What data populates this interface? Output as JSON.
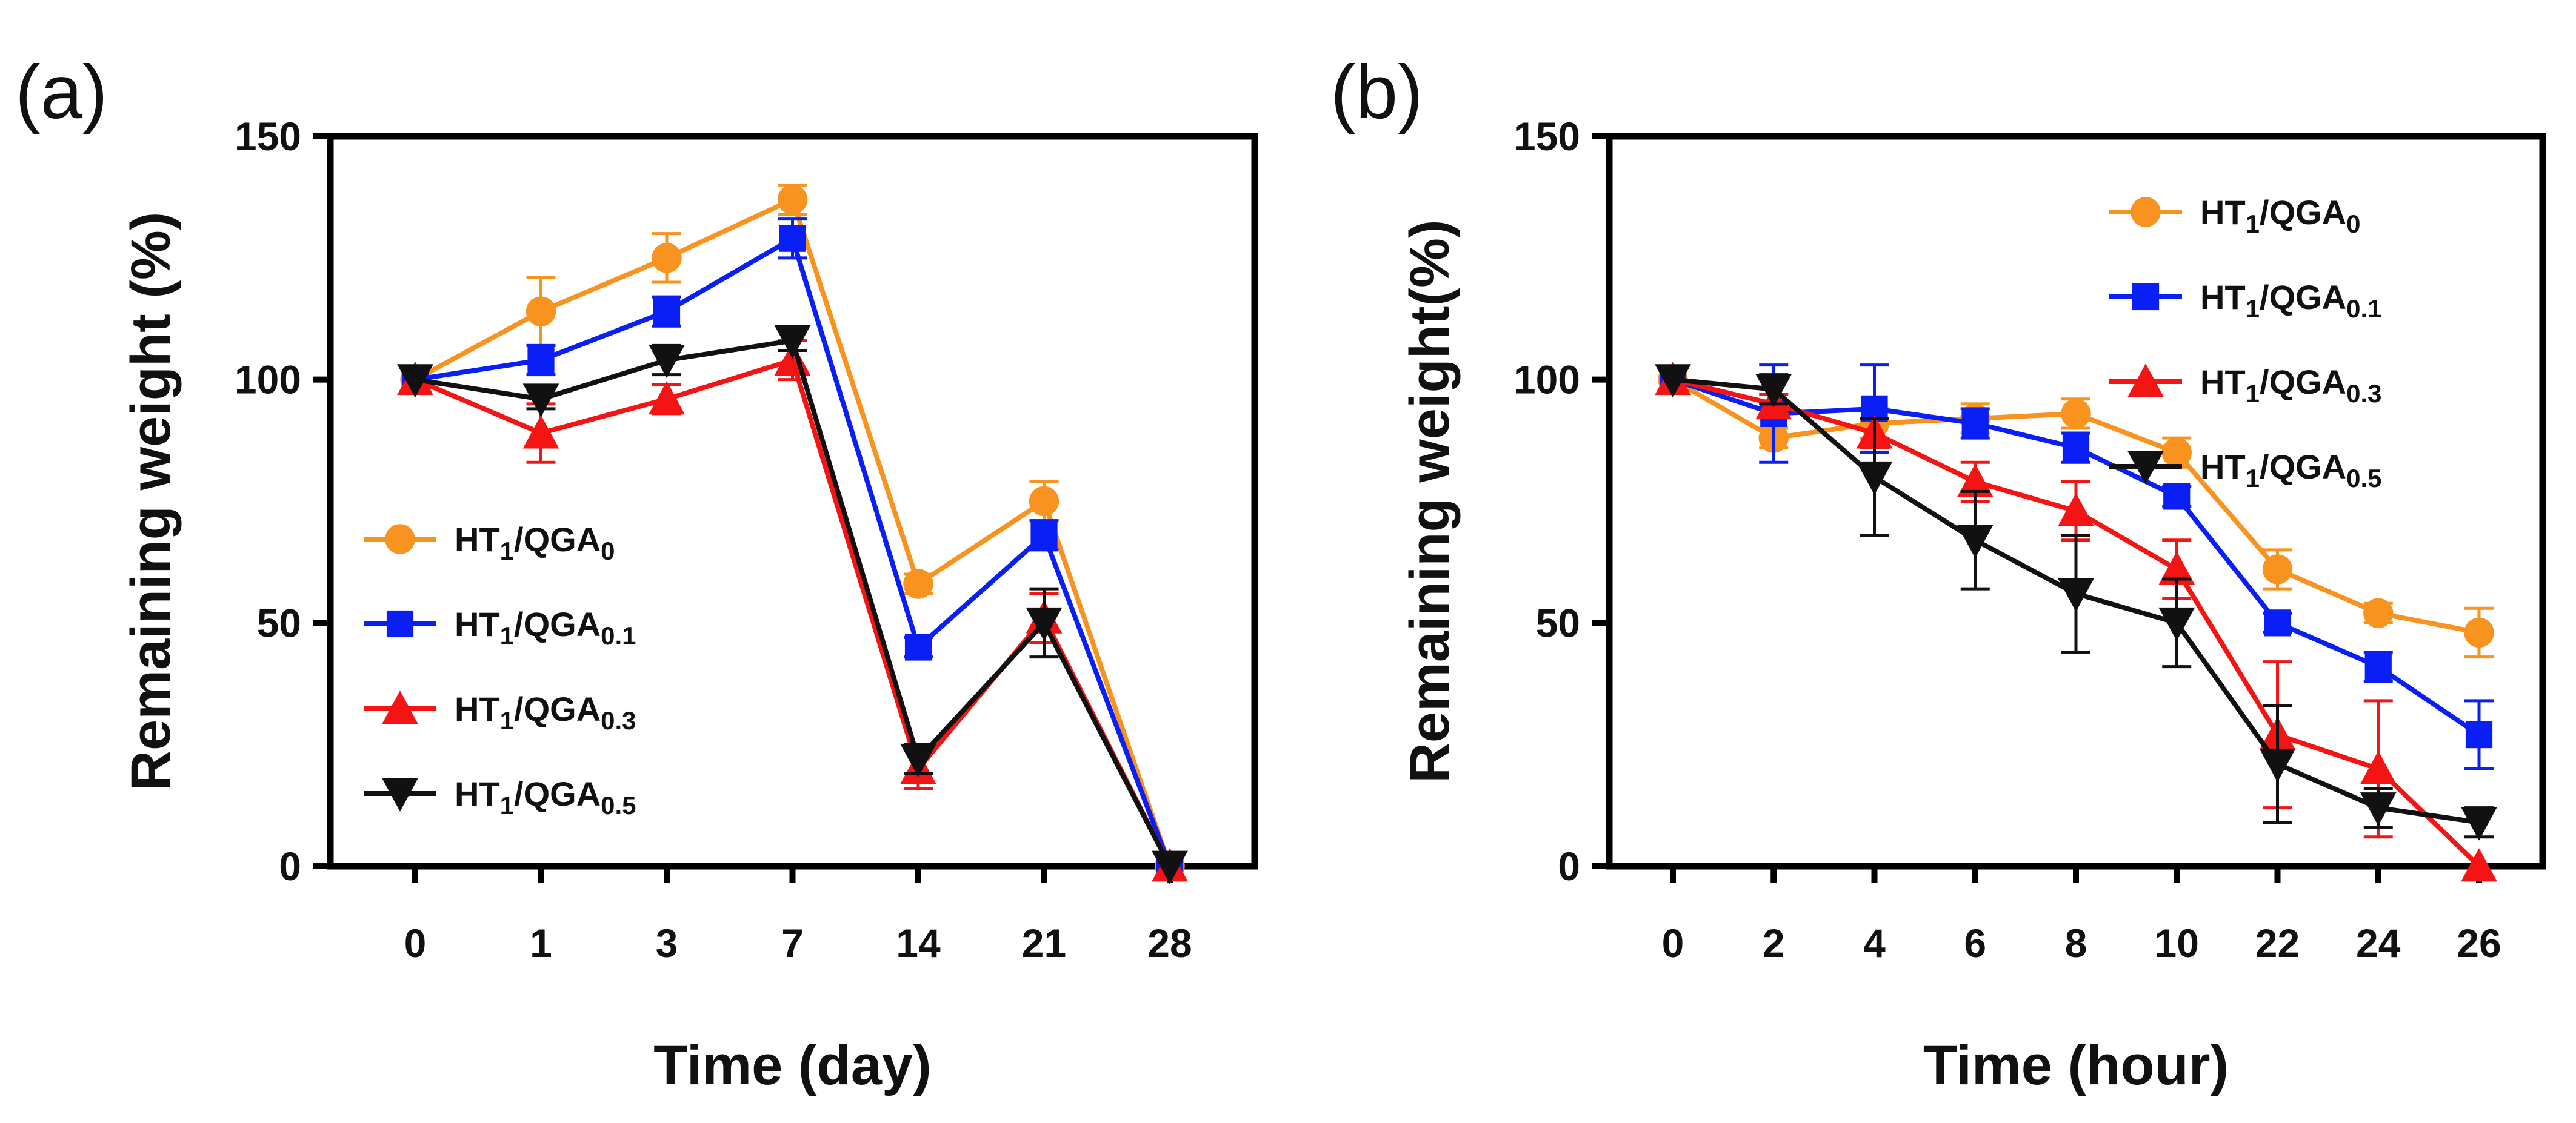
{
  "chart_data": [
    {
      "panel_label": "(a)",
      "type": "line",
      "title": "",
      "xlabel": "Time (day)",
      "ylabel": "Remaining weight (%)",
      "categories": [
        "0",
        "1",
        "3",
        "7",
        "14",
        "21",
        "28"
      ],
      "ylim": [
        0,
        150
      ],
      "yticks": [
        "0",
        "50",
        "100",
        "150"
      ],
      "grid": false,
      "legend_position": "lower-left",
      "series": [
        {
          "name": "HT1/QGA0",
          "label_main": "HT",
          "label_sub1": "1",
          "label_mid": "/QGA",
          "label_sub2": "0",
          "color": "#F7931E",
          "marker": "circle",
          "values": [
            100,
            114,
            125,
            137,
            58,
            75,
            0
          ],
          "errors": [
            0,
            7,
            5,
            3,
            2,
            4,
            0
          ]
        },
        {
          "name": "HT1/QGA0.1",
          "label_main": "HT",
          "label_sub1": "1",
          "label_mid": "/QGA",
          "label_sub2": "0.1",
          "color": "#0A1FF5",
          "marker": "square",
          "values": [
            100,
            104,
            114,
            129,
            45,
            68,
            0
          ],
          "errors": [
            0,
            3,
            3,
            4,
            2,
            3,
            0
          ]
        },
        {
          "name": "HT1/QGA0.3",
          "label_main": "HT",
          "label_sub1": "1",
          "label_mid": "/QGA",
          "label_sub2": "0.3",
          "color": "#F51414",
          "marker": "triangle-up",
          "values": [
            100,
            89,
            96,
            104,
            20,
            51,
            0
          ],
          "errors": [
            0,
            6,
            3,
            4,
            4,
            5,
            0
          ]
        },
        {
          "name": "HT1/QGA0.5",
          "label_main": "HT",
          "label_sub1": "1",
          "label_mid": "/QGA",
          "label_sub2": "0.5",
          "color": "#111111",
          "marker": "triangle-down",
          "values": [
            100,
            96,
            104,
            108,
            22,
            50,
            0
          ],
          "errors": [
            0,
            2,
            3,
            2,
            3,
            7,
            0
          ]
        }
      ]
    },
    {
      "panel_label": "(b)",
      "type": "line",
      "title": "",
      "xlabel": "Time (hour)",
      "ylabel": "Remaining weight(%)",
      "categories": [
        "0",
        "2",
        "4",
        "6",
        "8",
        "10",
        "22",
        "24",
        "26"
      ],
      "ylim": [
        0,
        150
      ],
      "yticks": [
        "0",
        "50",
        "100",
        "150"
      ],
      "grid": false,
      "legend_position": "top-right",
      "series": [
        {
          "name": "HT1/QGA0",
          "label_main": "HT",
          "label_sub1": "1",
          "label_mid": "/QGA",
          "label_sub2": "0",
          "color": "#F7931E",
          "marker": "circle",
          "values": [
            100,
            88,
            91,
            92,
            93,
            85,
            61,
            52,
            48
          ],
          "errors": [
            0,
            2,
            3,
            3,
            3,
            3,
            4,
            2,
            5
          ]
        },
        {
          "name": "HT1/QGA0.1",
          "label_main": "HT",
          "label_sub1": "1",
          "label_mid": "/QGA",
          "label_sub2": "0.1",
          "color": "#0A1FF5",
          "marker": "square",
          "values": [
            100,
            93,
            94,
            91,
            86,
            76,
            50,
            41,
            27
          ],
          "errors": [
            0,
            10,
            9,
            3,
            3,
            2,
            2,
            3,
            7
          ]
        },
        {
          "name": "HT1/QGA0.3",
          "label_main": "HT",
          "label_sub1": "1",
          "label_mid": "/QGA",
          "label_sub2": "0.3",
          "color": "#F51414",
          "marker": "triangle-up",
          "values": [
            100,
            95,
            89,
            79,
            73,
            61,
            27,
            20,
            0
          ],
          "errors": [
            0,
            2,
            3,
            4,
            6,
            6,
            15,
            14,
            0
          ]
        },
        {
          "name": "HT1/QGA0.5",
          "label_main": "HT",
          "label_sub1": "1",
          "label_mid": "/QGA",
          "label_sub2": "0.5",
          "color": "#111111",
          "marker": "triangle-down",
          "values": [
            100,
            98,
            80,
            67,
            56,
            50,
            21,
            12,
            9
          ],
          "errors": [
            0,
            3,
            12,
            10,
            12,
            9,
            12,
            4,
            3
          ]
        }
      ]
    }
  ]
}
